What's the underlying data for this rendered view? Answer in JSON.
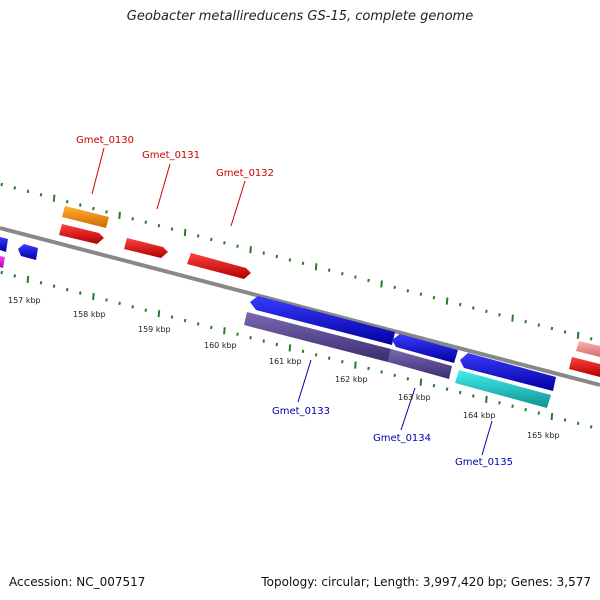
{
  "title": "Geobacter metallireducens GS-15, complete genome",
  "footer": {
    "accession": "Accession: NC_007517",
    "summary": "Topology: circular; Length: 3,997,420 bp; Genes: 3,577"
  },
  "colors": {
    "backbone": "#888888",
    "tick": "#2a7a2a",
    "label_top": "#cc0000",
    "label_bottom": "#0000aa"
  },
  "scale_labels": [
    "157 kbp",
    "158 kbp",
    "159 kbp",
    "160 kbp",
    "161 kbp",
    "162 kbp",
    "163 kbp",
    "164 kbp",
    "165 kbp"
  ],
  "top_gene_labels": [
    "Gmet_0130",
    "Gmet_0131",
    "Gmet_0132"
  ],
  "bottom_gene_labels": [
    "Gmet_0133",
    "Gmet_0134",
    "Gmet_0135"
  ]
}
